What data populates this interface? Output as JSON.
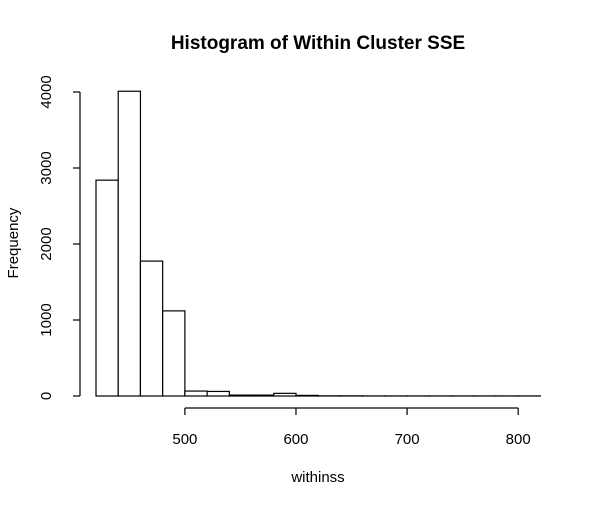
{
  "chart_data": {
    "type": "bar",
    "title": "Histogram of Within Cluster SSE",
    "xlabel": "withinss",
    "ylabel": "Frequency",
    "bin_width": 20,
    "bins": [
      {
        "start": 420,
        "end": 440,
        "count": 2840
      },
      {
        "start": 440,
        "end": 460,
        "count": 4010
      },
      {
        "start": 460,
        "end": 480,
        "count": 1775
      },
      {
        "start": 480,
        "end": 500,
        "count": 1120
      },
      {
        "start": 500,
        "end": 520,
        "count": 65
      },
      {
        "start": 520,
        "end": 540,
        "count": 60
      },
      {
        "start": 540,
        "end": 560,
        "count": 12
      },
      {
        "start": 560,
        "end": 580,
        "count": 12
      },
      {
        "start": 580,
        "end": 600,
        "count": 35
      },
      {
        "start": 600,
        "end": 620,
        "count": 8
      },
      {
        "start": 620,
        "end": 640,
        "count": 2
      },
      {
        "start": 640,
        "end": 660,
        "count": 2
      },
      {
        "start": 660,
        "end": 680,
        "count": 1
      },
      {
        "start": 680,
        "end": 700,
        "count": 1
      },
      {
        "start": 700,
        "end": 720,
        "count": 1
      },
      {
        "start": 720,
        "end": 740,
        "count": 1
      },
      {
        "start": 740,
        "end": 760,
        "count": 1
      },
      {
        "start": 760,
        "end": 780,
        "count": 1
      },
      {
        "start": 780,
        "end": 800,
        "count": 1
      },
      {
        "start": 800,
        "end": 820,
        "count": 1
      }
    ],
    "xticks": [
      500,
      600,
      700,
      800
    ],
    "yticks": [
      0,
      1000,
      2000,
      3000,
      4000
    ],
    "xlim": [
      420,
      820
    ],
    "ylim": [
      0,
      4000
    ],
    "grid": false,
    "legend": "none",
    "bar_fill": "#ffffff",
    "bar_stroke": "#000000"
  }
}
